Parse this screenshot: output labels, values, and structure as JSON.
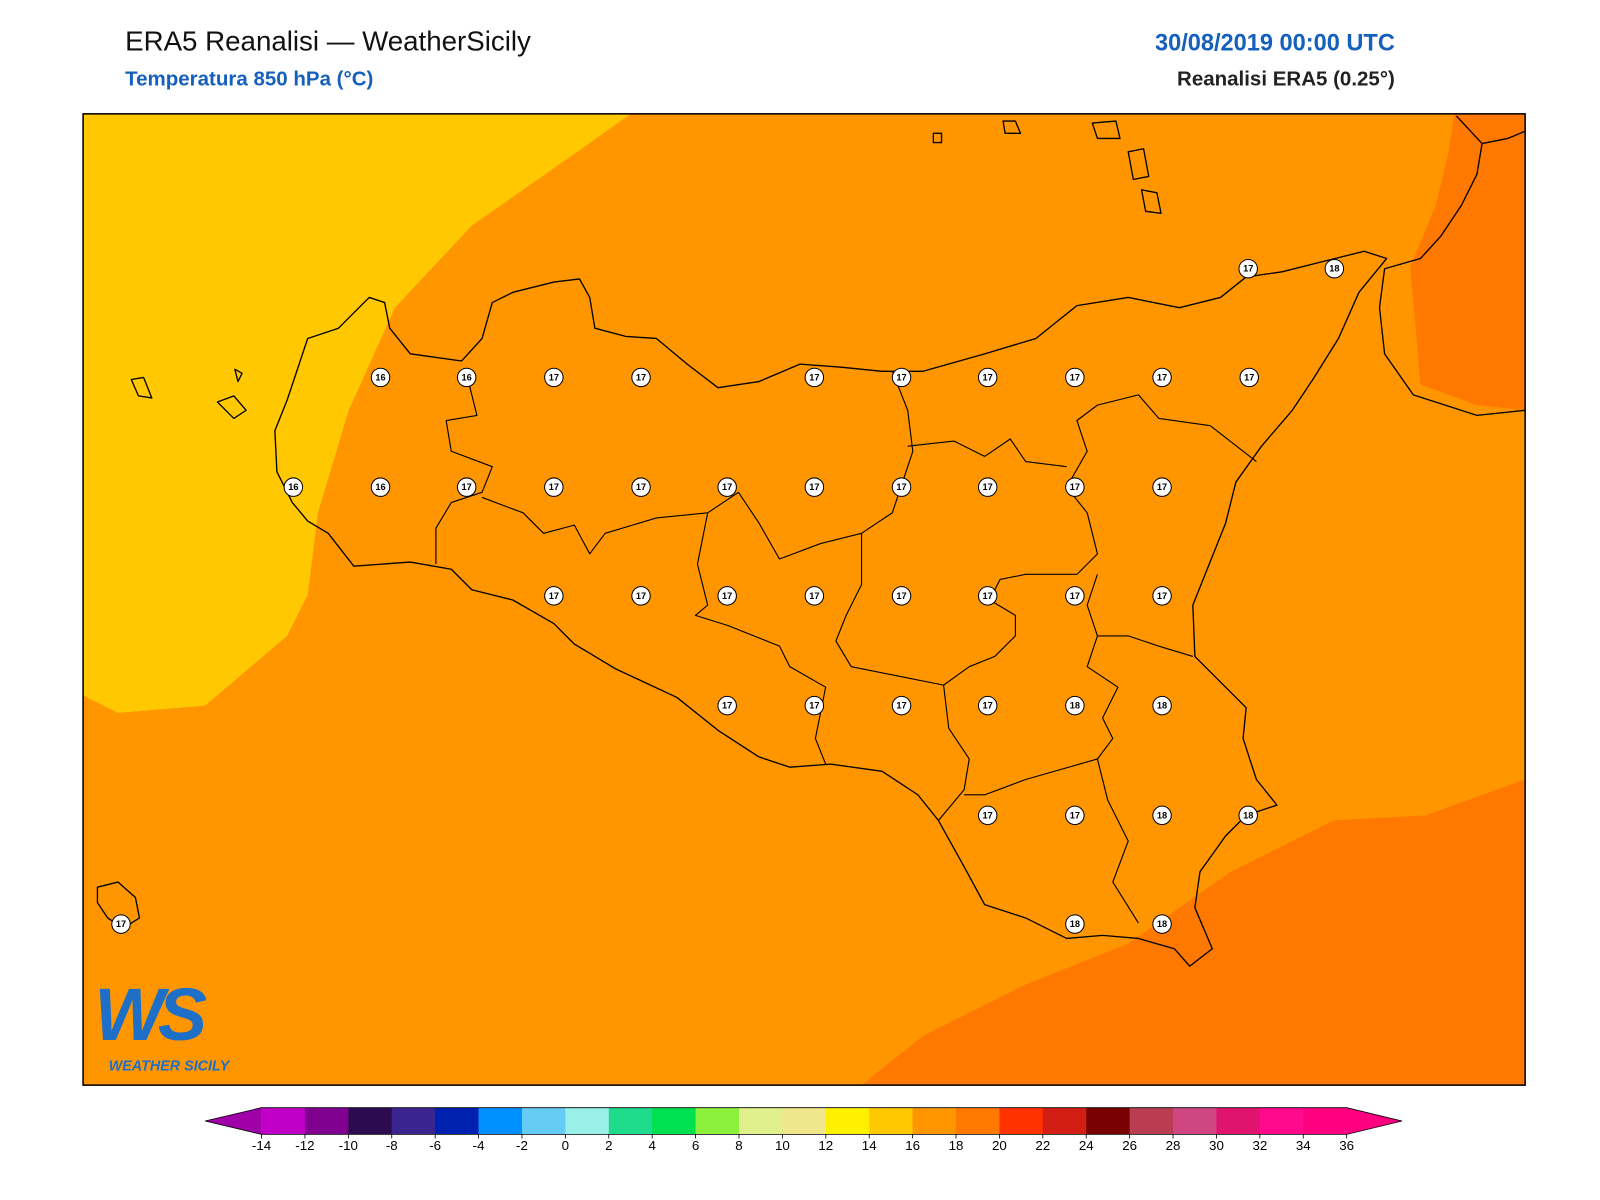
{
  "header": {
    "title": "ERA5 Reanalisi — WeatherSicily",
    "subtitle": "Temperatura 850 hPa (°C)",
    "date": "30/08/2019 00:00 UTC",
    "source": "Reanalisi ERA5 (0.25°)"
  },
  "stations": [
    17,
    18,
    16,
    16,
    17,
    17,
    17,
    17,
    17,
    17,
    17,
    17,
    16,
    16,
    17,
    17,
    17,
    17,
    17,
    17,
    17,
    17,
    17,
    17,
    17,
    17,
    17,
    17,
    17,
    17,
    17,
    17,
    17,
    17,
    17,
    18,
    18,
    17,
    17,
    18,
    18,
    17,
    18,
    18
  ],
  "colorbar": {
    "ticks": [
      -14,
      -12,
      -10,
      -8,
      -6,
      -4,
      -2,
      0,
      2,
      4,
      6,
      8,
      10,
      12,
      14,
      16,
      18,
      20,
      22,
      24,
      26,
      28,
      30,
      32,
      34,
      36
    ],
    "colors": [
      "#c000c8",
      "#800090",
      "#2d0b50",
      "#3a2590",
      "#0020b0",
      "#0090ff",
      "#66ccf5",
      "#99f0e8",
      "#1edc8c",
      "#00e050",
      "#8cf03c",
      "#e0f08c",
      "#f0e68c",
      "#fff000",
      "#ffc800",
      "#ff9600",
      "#ff7800",
      "#ff3200",
      "#d21e14",
      "#780000",
      "#b93c50",
      "#d04680",
      "#e0146e",
      "#ff0a8c",
      "#ff0080"
    ],
    "under": "#a000a8",
    "over": "#ff0080"
  },
  "logo": {
    "mark": "WS",
    "text": "WEATHER SICILY"
  }
}
